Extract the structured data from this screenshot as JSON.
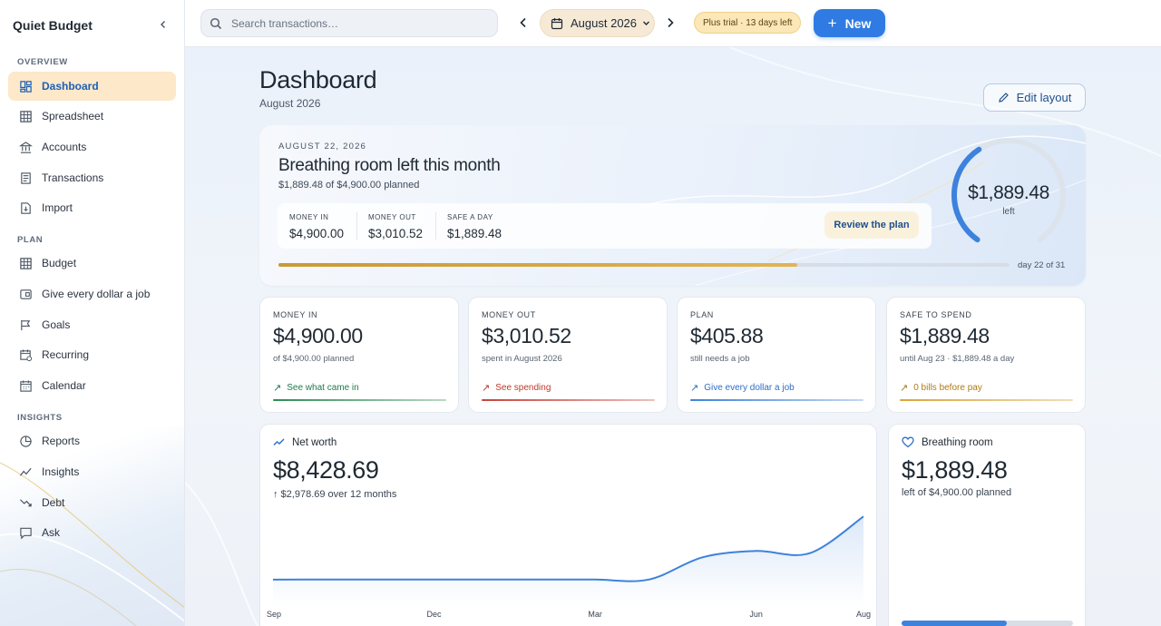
{
  "app": {
    "name": "Quiet Budget"
  },
  "sidebar": {
    "sections": [
      {
        "label": "OVERVIEW",
        "items": [
          {
            "label": "Dashboard",
            "icon": "dashboard-icon",
            "active": true
          },
          {
            "label": "Spreadsheet",
            "icon": "grid-icon"
          },
          {
            "label": "Accounts",
            "icon": "bank-icon"
          },
          {
            "label": "Transactions",
            "icon": "receipt-icon"
          },
          {
            "label": "Import",
            "icon": "file-import-icon"
          }
        ]
      },
      {
        "label": "PLAN",
        "items": [
          {
            "label": "Budget",
            "icon": "grid-icon"
          },
          {
            "label": "Give every dollar a job",
            "icon": "wallet-icon"
          },
          {
            "label": "Goals",
            "icon": "flag-icon"
          },
          {
            "label": "Recurring",
            "icon": "calendar-repeat-icon"
          },
          {
            "label": "Calendar",
            "icon": "calendar-icon"
          }
        ]
      },
      {
        "label": "INSIGHTS",
        "items": [
          {
            "label": "Reports",
            "icon": "pie-icon"
          },
          {
            "label": "Insights",
            "icon": "trend-icon"
          },
          {
            "label": "Debt",
            "icon": "trend-down-icon"
          },
          {
            "label": "Ask",
            "icon": "chat-icon"
          }
        ]
      }
    ]
  },
  "topbar": {
    "search_placeholder": "Search transactions…",
    "month": "August 2026",
    "trial": "Plus trial · 13 days left",
    "new_label": "New"
  },
  "page": {
    "title": "Dashboard",
    "subtitle": "August 2026",
    "edit_label": "Edit layout"
  },
  "hero": {
    "date": "AUGUST 22, 2026",
    "title": "Breathing room left this month",
    "subtitle": "$1,889.48 of $4,900.00 planned",
    "stats": [
      {
        "label": "MONEY IN",
        "value": "$4,900.00"
      },
      {
        "label": "MONEY OUT",
        "value": "$3,010.52"
      },
      {
        "label": "SAFE A DAY",
        "value": "$1,889.48"
      }
    ],
    "review_label": "Review the plan",
    "gauge_value": "$1,889.48",
    "gauge_label": "left",
    "gauge_fraction": 0.386,
    "day_label": "day 22 of 31",
    "day_fraction": 0.71
  },
  "kpis": [
    {
      "label": "MONEY IN",
      "value": "$4,900.00",
      "sub": "of $4,900.00 planned",
      "link": "See what came in",
      "color": "#1f7a4a",
      "bar": "#2c8b56"
    },
    {
      "label": "MONEY OUT",
      "value": "$3,010.52",
      "sub": "spent in August 2026",
      "link": "See spending",
      "color": "#c0392b",
      "bar": "#c8423a"
    },
    {
      "label": "PLAN",
      "value": "$405.88",
      "sub": "still needs a job",
      "link": "Give every dollar a job",
      "color": "#2f6fc2",
      "bar": "#3d82dc"
    },
    {
      "label": "SAFE TO SPEND",
      "value": "$1,889.48",
      "sub": "until Aug 23 · $1,889.48 a day",
      "link": "0 bills before pay",
      "color": "#b07a12",
      "bar": "#d9a53a"
    }
  ],
  "net_worth": {
    "title": "Net worth",
    "value": "$8,428.69",
    "delta": "↑ $2,978.69 over 12 months",
    "chart_data": {
      "type": "area",
      "x": [
        "Sep",
        "Oct",
        "Nov",
        "Dec",
        "Jan",
        "Feb",
        "Mar",
        "Apr",
        "May",
        "Jun",
        "Jul",
        "Aug"
      ],
      "tick_labels": [
        "Sep",
        "Dec",
        "Mar",
        "Jun",
        "Aug"
      ],
      "values": [
        5450,
        5450,
        5450,
        5450,
        5450,
        5450,
        5450,
        5450,
        6500,
        6800,
        6700,
        8428.69
      ],
      "color": "#3d82dc"
    }
  },
  "breathing_room": {
    "title": "Breathing room",
    "value": "$1,889.48",
    "sub": "left of $4,900.00 planned",
    "fraction": 0.614
  }
}
